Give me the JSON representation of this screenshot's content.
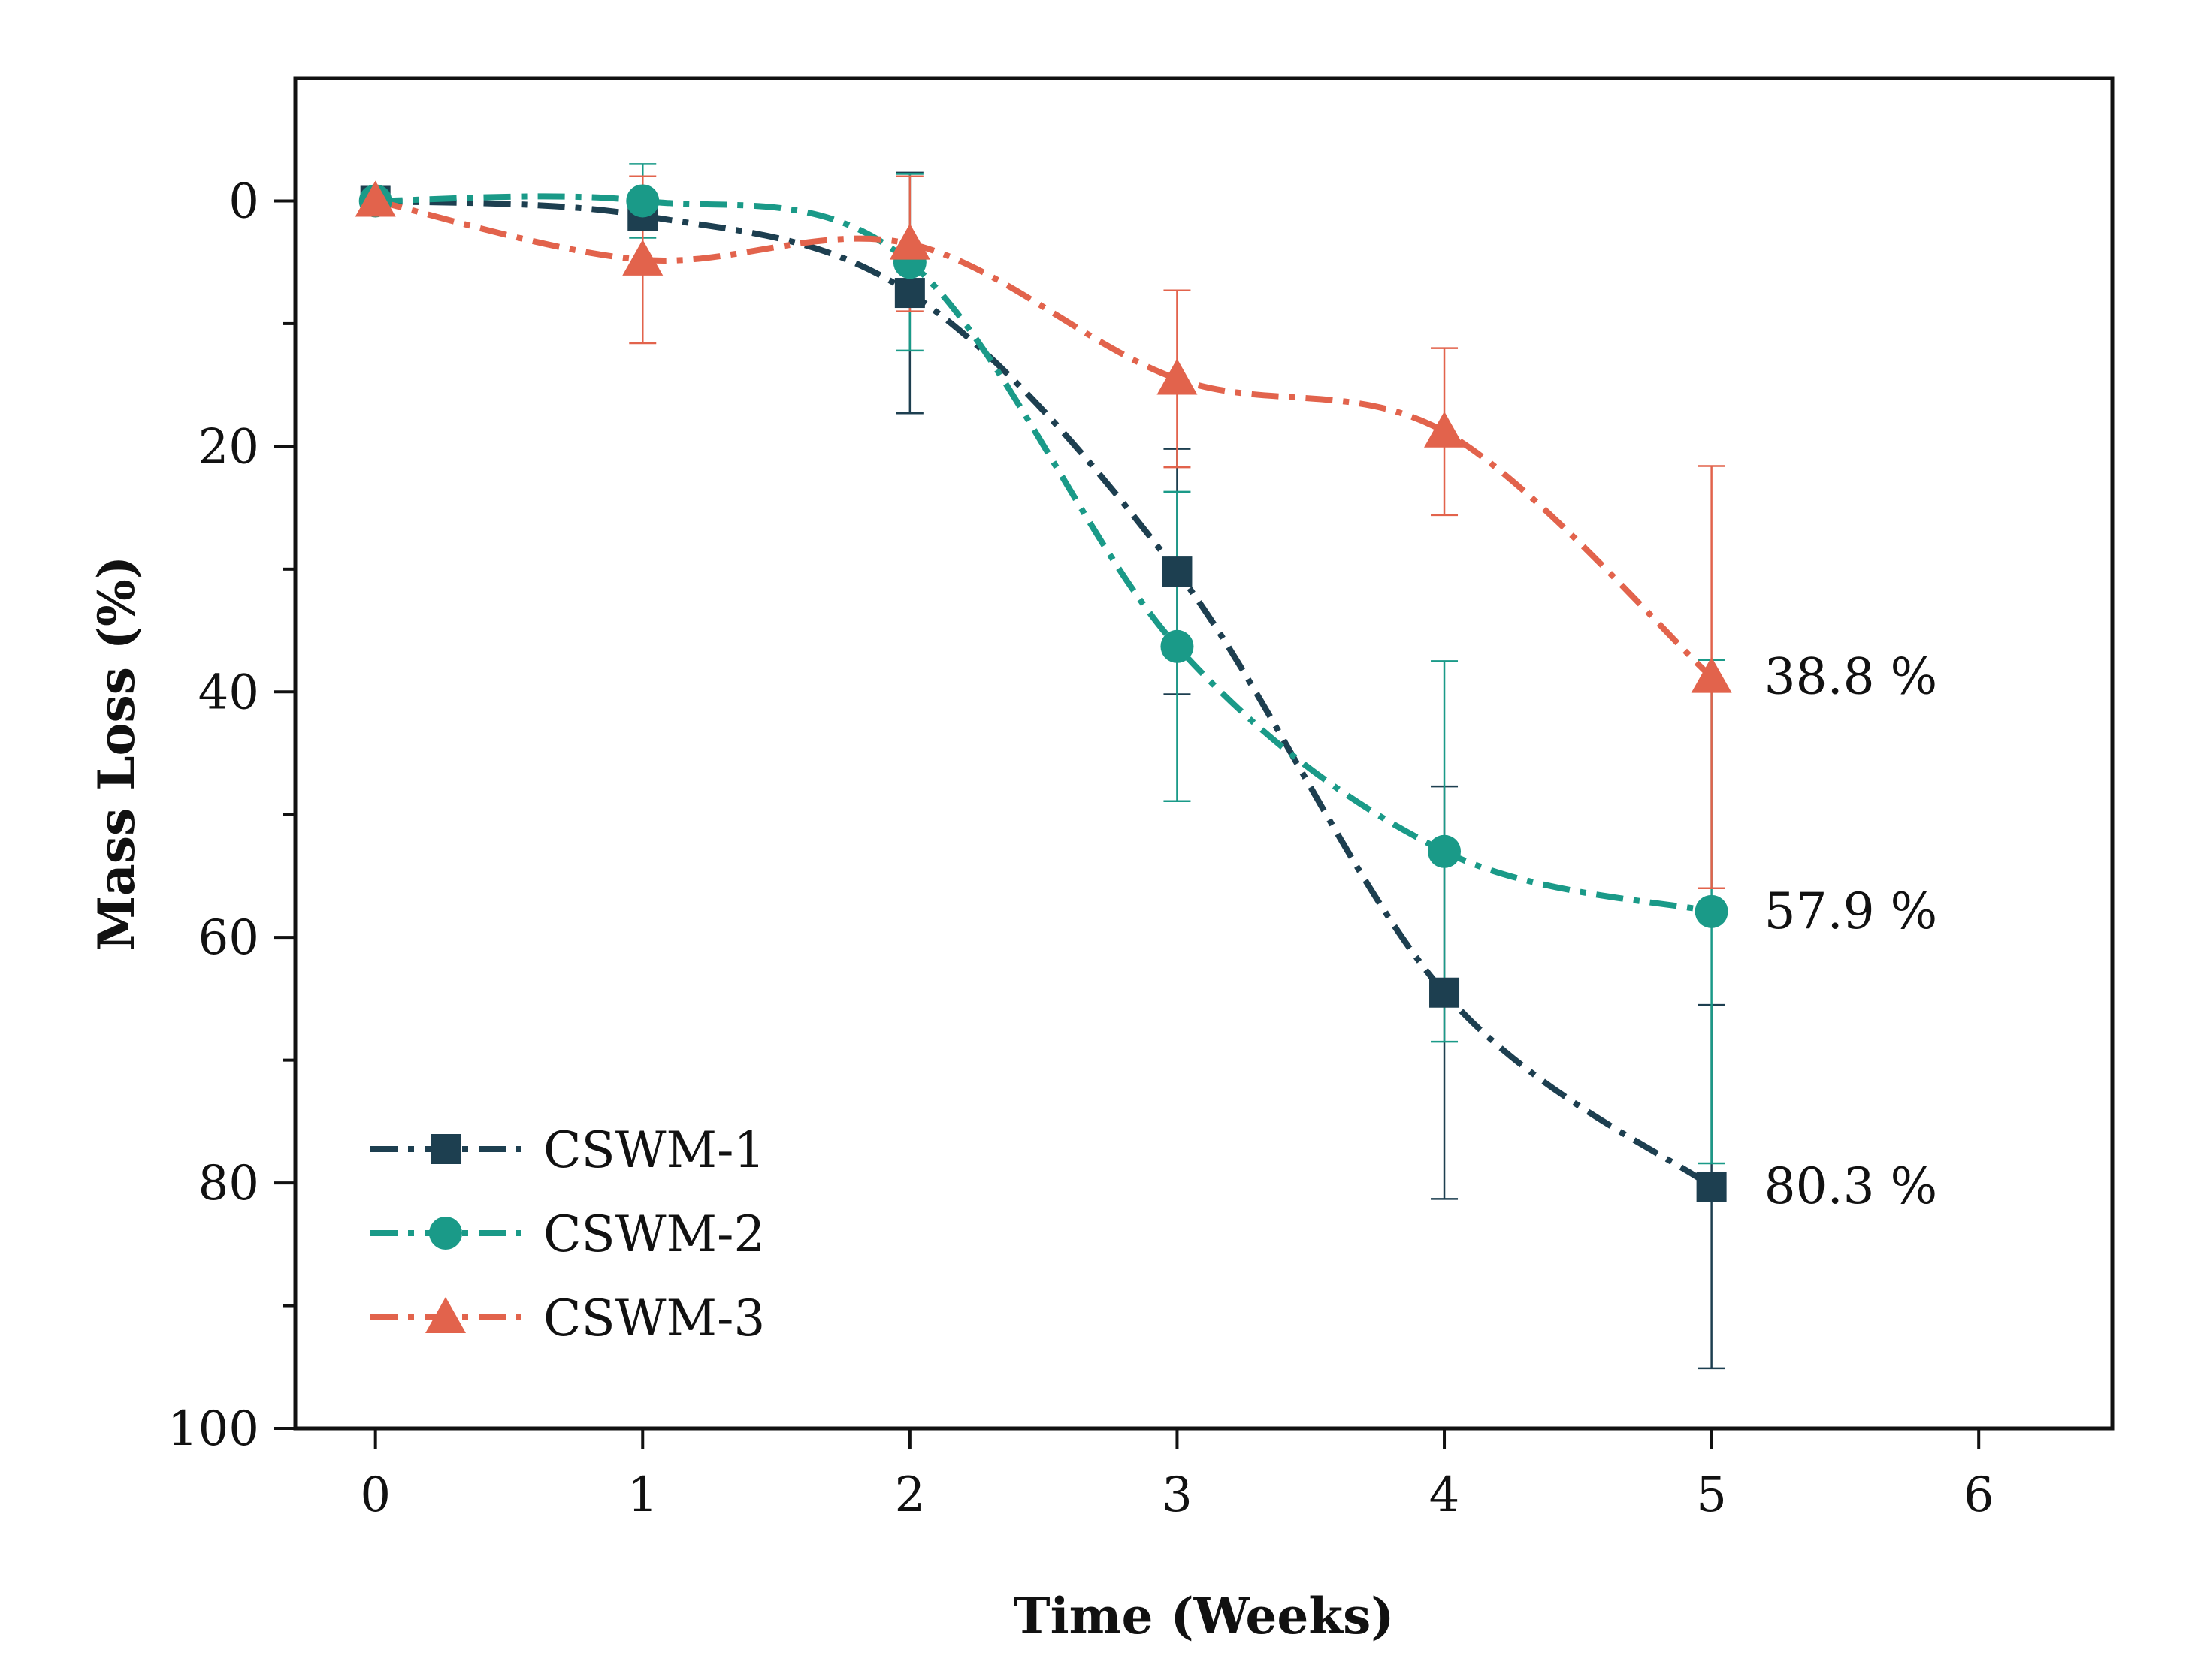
{
  "chart_data": {
    "type": "line",
    "title": "",
    "xlabel": "Time (Weeks)",
    "ylabel": "Mass Loss (%)",
    "xlim": [
      -0.3,
      6.5
    ],
    "ylim": [
      -10,
      100
    ],
    "y_inverted": true,
    "xticks": [
      0,
      1,
      2,
      3,
      4,
      5,
      6
    ],
    "yticks": [
      0,
      20,
      40,
      60,
      80,
      100
    ],
    "y_minor_ticks": [
      10,
      30,
      50,
      70,
      90
    ],
    "grid": false,
    "legend_position": "bottom-left",
    "series": [
      {
        "name": "CSWM-1",
        "color": "#1d3f50",
        "marker": "square",
        "x": [
          0,
          1,
          2,
          3,
          4,
          5
        ],
        "values": [
          0,
          1.2,
          7.5,
          30.2,
          64.5,
          80.3
        ],
        "error": [
          0,
          0.5,
          9.8,
          10.0,
          16.8,
          14.8
        ],
        "end_label": "80.3 %"
      },
      {
        "name": "CSWM-2",
        "color": "#1a9a88",
        "marker": "circle",
        "x": [
          0,
          1,
          2,
          3,
          4,
          5
        ],
        "values": [
          0,
          0,
          5.0,
          36.3,
          53.0,
          57.9
        ],
        "error": [
          0,
          3.0,
          7.2,
          12.6,
          15.5,
          20.5
        ],
        "end_label": "57.9 %"
      },
      {
        "name": "CSWM-3",
        "color": "#e2634c",
        "marker": "triangle",
        "x": [
          0,
          1,
          2,
          3,
          4,
          5
        ],
        "values": [
          0,
          4.8,
          3.5,
          14.5,
          18.8,
          38.8
        ],
        "error": [
          0,
          6.8,
          5.5,
          7.2,
          6.8,
          17.2
        ],
        "end_label": "38.8 %"
      }
    ]
  }
}
